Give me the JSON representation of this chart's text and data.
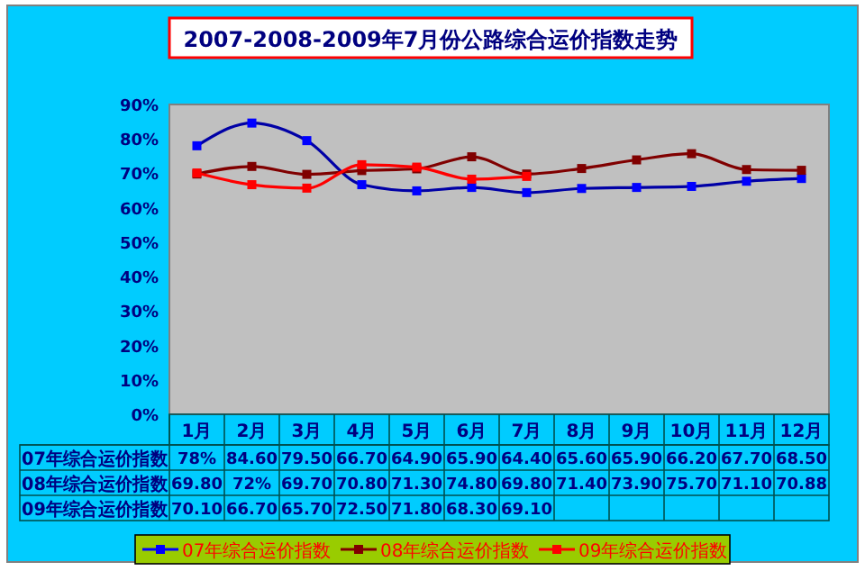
{
  "chart_data": {
    "type": "line",
    "title": "2007-2008-2009年7月份公路综合运价指数走势",
    "categories": [
      "1月",
      "2月",
      "3月",
      "4月",
      "5月",
      "6月",
      "7月",
      "8月",
      "9月",
      "10月",
      "11月",
      "12月"
    ],
    "series": [
      {
        "name": "07年综合运价指数",
        "color": "#0000ff",
        "values": [
          78,
          84.6,
          79.5,
          66.7,
          64.9,
          65.9,
          64.4,
          65.6,
          65.9,
          66.2,
          67.7,
          68.5
        ],
        "value_labels": [
          "78%",
          "84.60",
          "79.50",
          "66.70",
          "64.90",
          "65.90",
          "64.40",
          "65.60",
          "65.90",
          "66.20",
          "67.70",
          "68.50"
        ]
      },
      {
        "name": "08年综合运价指数",
        "color": "#800000",
        "values": [
          69.8,
          72,
          69.7,
          70.8,
          71.3,
          74.8,
          69.8,
          71.4,
          73.9,
          75.7,
          71.1,
          70.88
        ],
        "value_labels": [
          "69.80",
          "72%",
          "69.70",
          "70.80",
          "71.30",
          "74.80",
          "69.80",
          "71.40",
          "73.90",
          "75.70",
          "71.10",
          "70.88"
        ]
      },
      {
        "name": "09年综合运价指数",
        "color": "#ff0000",
        "values": [
          70.1,
          66.7,
          65.7,
          72.5,
          71.8,
          68.3,
          69.1,
          null,
          null,
          null,
          null,
          null
        ],
        "value_labels": [
          "70.10",
          "66.70",
          "65.70",
          "72.50",
          "71.80",
          "68.30",
          "69.10",
          null,
          null,
          null,
          null,
          null
        ]
      }
    ],
    "ylim": [
      0,
      90
    ],
    "yticks": [
      {
        "value": 0,
        "label": "0%"
      },
      {
        "value": 10,
        "label": "10%"
      },
      {
        "value": 20,
        "label": "20%"
      },
      {
        "value": 30,
        "label": "30%"
      },
      {
        "value": 40,
        "label": "40%"
      },
      {
        "value": 50,
        "label": "50%"
      },
      {
        "value": 60,
        "label": "60%"
      },
      {
        "value": 70,
        "label": "70%"
      },
      {
        "value": 80,
        "label": "80%"
      },
      {
        "value": 90,
        "label": "90%"
      }
    ],
    "marker": "square",
    "line_style": "solid",
    "legend": "bottom"
  }
}
